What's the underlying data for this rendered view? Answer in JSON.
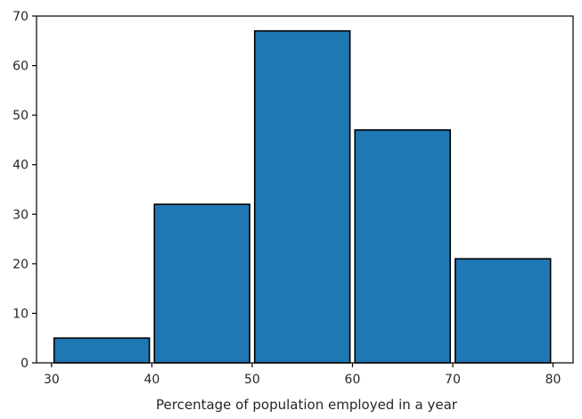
{
  "chart_data": {
    "type": "bar",
    "subtype": "histogram",
    "title": "",
    "xlabel": "Percentage of population employed in a year",
    "ylabel": "",
    "bins": [
      {
        "start": 30,
        "end": 40,
        "value": 5
      },
      {
        "start": 40,
        "end": 50,
        "value": 32
      },
      {
        "start": 50,
        "end": 60,
        "value": 67
      },
      {
        "start": 60,
        "end": 70,
        "value": 47
      },
      {
        "start": 70,
        "end": 80,
        "value": 21
      }
    ],
    "xlim": [
      28.5,
      82
    ],
    "ylim": [
      0,
      70
    ],
    "xticks": [
      30,
      40,
      50,
      60,
      70,
      80
    ],
    "yticks": [
      0,
      10,
      20,
      30,
      40,
      50,
      60,
      70
    ],
    "grid": false,
    "legend": null,
    "colors": {
      "bar_fill": "#1f77b4",
      "bar_edge": "#000000",
      "axis": "#000000",
      "text": "#262626"
    }
  }
}
